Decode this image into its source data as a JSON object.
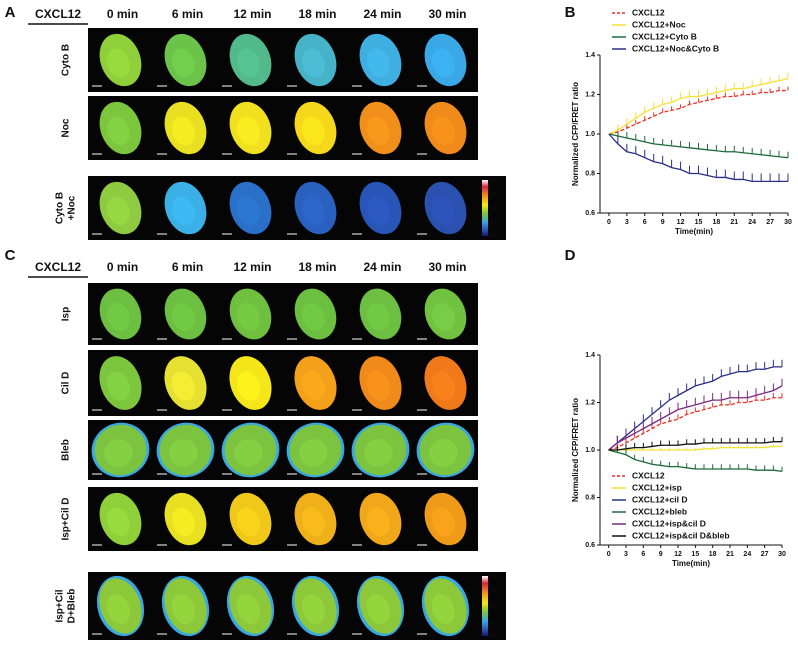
{
  "panels": {
    "A": {
      "label": "A",
      "stimulus": "CXCL12",
      "times": [
        "0 min",
        "6 min",
        "12 min",
        "18 min",
        "24 min",
        "30 min"
      ],
      "rows": [
        [
          "Cyto B"
        ],
        [
          "Noc"
        ],
        [
          "Cyto B",
          "+Noc"
        ]
      ],
      "colorbar": [
        2.8,
        2.3,
        1.8,
        1.3,
        0.8
      ]
    },
    "C": {
      "label": "C",
      "stimulus": "CXCL12",
      "times": [
        "0 min",
        "6 min",
        "12 min",
        "18 min",
        "24 min",
        "30 min"
      ],
      "rows": [
        [
          "Isp"
        ],
        [
          "Cil D"
        ],
        [
          "Bleb"
        ],
        [
          "Isp+Cil D"
        ],
        [
          "Isp+Cil",
          "D+Bleb"
        ]
      ],
      "colorbar": [
        2.8,
        2.3,
        1.8,
        1.3,
        0.8
      ]
    }
  },
  "chart_data": [
    {
      "type": "line",
      "label": "B",
      "ylabel": "Normalized CFP/FRET ratio",
      "xlabel": "Time(min)",
      "legend": "upper left",
      "xlim": [
        -1.5,
        30
      ],
      "ylim": [
        0.6,
        1.4
      ],
      "xticks": [
        0,
        3,
        6,
        9,
        12,
        15,
        18,
        21,
        24,
        27,
        30
      ],
      "yticks": [
        0.6,
        0.8,
        {
          "value": 1,
          "label": "1.0"
        },
        1.2,
        1.4
      ],
      "x": [
        0,
        1.5,
        3,
        4.5,
        6,
        7.5,
        9,
        10.5,
        12,
        13.5,
        15,
        16.5,
        18,
        19.5,
        21,
        22.5,
        24,
        25.5,
        27,
        28.5,
        30
      ],
      "series": [
        {
          "name": "CXCL12",
          "color": "#e8322a",
          "dashed": true,
          "values": [
            1.0,
            1.01,
            1.03,
            1.05,
            1.07,
            1.09,
            1.11,
            1.12,
            1.13,
            1.15,
            1.16,
            1.17,
            1.18,
            1.19,
            1.19,
            1.2,
            1.2,
            1.21,
            1.21,
            1.22,
            1.22
          ],
          "errors": [
            0,
            0.02,
            0.02,
            0.02,
            0.02,
            0.02,
            0.02,
            0.02,
            0.02,
            0.02,
            0.02,
            0.02,
            0.02,
            0.02,
            0.02,
            0.02,
            0.02,
            0.02,
            0.02,
            0.02,
            0.02
          ]
        },
        {
          "name": "CXCL12+Noc",
          "color": "#f5e135",
          "dashed": false,
          "values": [
            1.0,
            1.02,
            1.05,
            1.08,
            1.11,
            1.13,
            1.15,
            1.16,
            1.18,
            1.19,
            1.19,
            1.2,
            1.21,
            1.22,
            1.23,
            1.23,
            1.24,
            1.25,
            1.26,
            1.27,
            1.28
          ],
          "errors": [
            0,
            0.03,
            0.03,
            0.03,
            0.03,
            0.03,
            0.03,
            0.03,
            0.03,
            0.03,
            0.03,
            0.03,
            0.03,
            0.03,
            0.03,
            0.03,
            0.03,
            0.03,
            0.03,
            0.03,
            0.03
          ]
        },
        {
          "name": "CXCL12+Cyto B",
          "color": "#1e6b3a",
          "dashed": false,
          "values": [
            1.0,
            0.99,
            0.98,
            0.97,
            0.96,
            0.95,
            0.945,
            0.94,
            0.935,
            0.93,
            0.925,
            0.92,
            0.915,
            0.91,
            0.91,
            0.905,
            0.9,
            0.895,
            0.89,
            0.885,
            0.88
          ],
          "errors": [
            0,
            0.02,
            0.03,
            0.03,
            0.03,
            0.03,
            0.03,
            0.03,
            0.03,
            0.03,
            0.03,
            0.03,
            0.03,
            0.03,
            0.03,
            0.03,
            0.03,
            0.03,
            0.03,
            0.03,
            0.03
          ]
        },
        {
          "name": "CXCL12+Noc&Cyto B",
          "color": "#2b2f86",
          "dashed": false,
          "values": [
            1.0,
            0.95,
            0.91,
            0.9,
            0.88,
            0.86,
            0.85,
            0.83,
            0.82,
            0.8,
            0.8,
            0.79,
            0.78,
            0.78,
            0.77,
            0.77,
            0.76,
            0.76,
            0.76,
            0.76,
            0.76
          ],
          "errors": [
            0,
            0.04,
            0.04,
            0.04,
            0.04,
            0.04,
            0.04,
            0.04,
            0.04,
            0.04,
            0.04,
            0.04,
            0.04,
            0.04,
            0.04,
            0.04,
            0.04,
            0.04,
            0.04,
            0.04,
            0.04
          ]
        }
      ]
    },
    {
      "type": "line",
      "label": "D",
      "ylabel": "Normalized CFP/FRET ratio",
      "xlabel": "Time(min)",
      "legend": "lower left",
      "xlim": [
        -1.5,
        30
      ],
      "ylim": [
        0.6,
        1.4
      ],
      "xticks": [
        0,
        3,
        6,
        9,
        12,
        15,
        18,
        21,
        24,
        27,
        30
      ],
      "yticks": [
        0.6,
        0.8,
        {
          "value": 1,
          "label": "1.0"
        },
        1.2,
        1.4
      ],
      "x": [
        0,
        1.5,
        3,
        4.5,
        6,
        7.5,
        9,
        10.5,
        12,
        13.5,
        15,
        16.5,
        18,
        19.5,
        21,
        22.5,
        24,
        25.5,
        27,
        28.5,
        30
      ],
      "series": [
        {
          "name": "CXCL12",
          "color": "#e8322a",
          "dashed": true,
          "values": [
            1.0,
            1.01,
            1.03,
            1.05,
            1.07,
            1.09,
            1.11,
            1.12,
            1.13,
            1.15,
            1.16,
            1.17,
            1.18,
            1.19,
            1.19,
            1.2,
            1.2,
            1.21,
            1.21,
            1.22,
            1.22
          ],
          "errors": [
            0,
            0.02,
            0.02,
            0.02,
            0.02,
            0.02,
            0.02,
            0.02,
            0.02,
            0.02,
            0.02,
            0.02,
            0.02,
            0.02,
            0.02,
            0.02,
            0.02,
            0.02,
            0.02,
            0.02,
            0.02
          ]
        },
        {
          "name": "CXCL12+isp",
          "color": "#f5e135",
          "dashed": false,
          "values": [
            1.0,
            1.0,
            1.0,
            1.0,
            1.0,
            1.0,
            1.0,
            1.0,
            1.0,
            1.0,
            1.0,
            1.005,
            1.005,
            1.01,
            1.01,
            1.01,
            1.01,
            1.01,
            1.01,
            1.015,
            1.015
          ],
          "errors": [
            0,
            0.01,
            0.01,
            0.01,
            0.01,
            0.01,
            0.01,
            0.01,
            0.01,
            0.01,
            0.01,
            0.01,
            0.01,
            0.01,
            0.01,
            0.01,
            0.01,
            0.01,
            0.01,
            0.01,
            0.01
          ]
        },
        {
          "name": "CXCL12+cil D",
          "color": "#2b2f86",
          "dashed": false,
          "values": [
            1.0,
            1.03,
            1.06,
            1.09,
            1.12,
            1.15,
            1.18,
            1.21,
            1.23,
            1.25,
            1.27,
            1.28,
            1.29,
            1.31,
            1.32,
            1.33,
            1.33,
            1.34,
            1.34,
            1.35,
            1.35
          ],
          "errors": [
            0,
            0.03,
            0.03,
            0.03,
            0.03,
            0.03,
            0.03,
            0.03,
            0.03,
            0.03,
            0.03,
            0.03,
            0.03,
            0.03,
            0.03,
            0.03,
            0.03,
            0.03,
            0.03,
            0.03,
            0.03
          ]
        },
        {
          "name": "CXCL12+bleb",
          "color": "#1e6b3a",
          "dashed": false,
          "values": [
            1.0,
            0.99,
            0.98,
            0.96,
            0.95,
            0.94,
            0.935,
            0.93,
            0.93,
            0.925,
            0.92,
            0.92,
            0.92,
            0.92,
            0.92,
            0.92,
            0.92,
            0.915,
            0.915,
            0.915,
            0.91
          ],
          "errors": [
            0,
            0.02,
            0.02,
            0.02,
            0.02,
            0.02,
            0.02,
            0.02,
            0.02,
            0.02,
            0.02,
            0.02,
            0.02,
            0.02,
            0.02,
            0.02,
            0.02,
            0.02,
            0.02,
            0.02,
            0.02
          ]
        },
        {
          "name": "CXCL12+isp&cil D",
          "color": "#7b2a83",
          "dashed": false,
          "values": [
            1.0,
            1.03,
            1.05,
            1.07,
            1.09,
            1.11,
            1.13,
            1.15,
            1.17,
            1.18,
            1.19,
            1.2,
            1.21,
            1.21,
            1.22,
            1.22,
            1.22,
            1.23,
            1.24,
            1.25,
            1.27
          ],
          "errors": [
            0,
            0.03,
            0.03,
            0.03,
            0.03,
            0.03,
            0.03,
            0.03,
            0.03,
            0.03,
            0.03,
            0.03,
            0.03,
            0.03,
            0.03,
            0.03,
            0.03,
            0.03,
            0.03,
            0.03,
            0.03
          ]
        },
        {
          "name": "CXCL12+isp&cil D&bleb",
          "color": "#111111",
          "dashed": false,
          "values": [
            1.0,
            1.0,
            1.005,
            1.01,
            1.01,
            1.015,
            1.02,
            1.02,
            1.02,
            1.025,
            1.025,
            1.03,
            1.03,
            1.03,
            1.03,
            1.03,
            1.03,
            1.03,
            1.03,
            1.035,
            1.035
          ],
          "errors": [
            0,
            0.02,
            0.02,
            0.02,
            0.02,
            0.02,
            0.02,
            0.02,
            0.02,
            0.02,
            0.02,
            0.02,
            0.02,
            0.02,
            0.02,
            0.02,
            0.02,
            0.02,
            0.02,
            0.02,
            0.02
          ]
        }
      ]
    }
  ]
}
